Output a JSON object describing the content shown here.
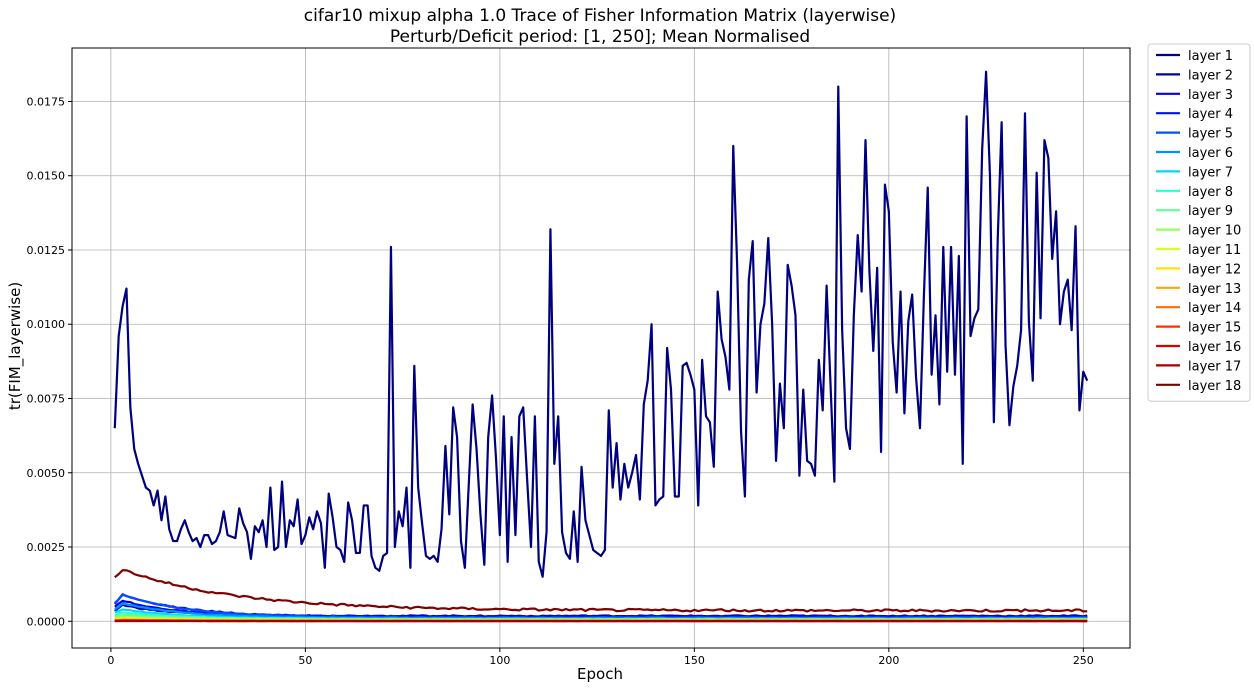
{
  "chart_data": {
    "type": "line",
    "title": "cifar10 mixup alpha 1.0 Trace of Fisher Information Matrix (layerwise)",
    "subtitle": "Perturb/Deficit period: [1, 250]; Mean Normalised",
    "xlabel": "Epoch",
    "ylabel": "tr(FIM_layerwise)",
    "xlim": [
      -10,
      262
    ],
    "ylim": [
      -0.0009,
      0.0193
    ],
    "xticks": [
      0,
      50,
      100,
      150,
      200,
      250
    ],
    "yticks": [
      0.0,
      0.0025,
      0.005,
      0.0075,
      0.01,
      0.0125,
      0.015,
      0.0175
    ],
    "ytick_labels": [
      "0.0000",
      "0.0025",
      "0.0050",
      "0.0075",
      "0.0100",
      "0.0125",
      "0.0150",
      "0.0175"
    ],
    "grid": true,
    "legend_position": "outside-right",
    "series": [
      {
        "name": "layer 1",
        "color": "#00007f",
        "points": [
          [
            1,
            0.0065
          ],
          [
            2,
            0.0096
          ],
          [
            3,
            0.0106
          ],
          [
            4,
            0.0112
          ],
          [
            5,
            0.0072
          ],
          [
            6,
            0.0058
          ],
          [
            7,
            0.0053
          ],
          [
            8,
            0.0049
          ],
          [
            9,
            0.0045
          ],
          [
            10,
            0.0044
          ],
          [
            11,
            0.0039
          ],
          [
            12,
            0.0044
          ],
          [
            13,
            0.0034
          ],
          [
            14,
            0.0042
          ],
          [
            15,
            0.0031
          ],
          [
            16,
            0.0027
          ],
          [
            17,
            0.0027
          ],
          [
            18,
            0.0031
          ],
          [
            19,
            0.0034
          ],
          [
            20,
            0.003
          ],
          [
            21,
            0.0027
          ],
          [
            22,
            0.0028
          ],
          [
            23,
            0.0025
          ],
          [
            24,
            0.0029
          ],
          [
            25,
            0.0029
          ],
          [
            26,
            0.0026
          ],
          [
            27,
            0.0027
          ],
          [
            28,
            0.003
          ],
          [
            29,
            0.0037
          ],
          [
            30,
            0.0029
          ],
          [
            32,
            0.0028
          ],
          [
            33,
            0.0038
          ],
          [
            34,
            0.0033
          ],
          [
            35,
            0.003
          ],
          [
            36,
            0.0021
          ],
          [
            37,
            0.0032
          ],
          [
            38,
            0.003
          ],
          [
            39,
            0.0034
          ],
          [
            40,
            0.0025
          ],
          [
            41,
            0.0045
          ],
          [
            42,
            0.0024
          ],
          [
            43,
            0.0025
          ],
          [
            44,
            0.0047
          ],
          [
            45,
            0.0025
          ],
          [
            46,
            0.0034
          ],
          [
            47,
            0.0032
          ],
          [
            48,
            0.0041
          ],
          [
            49,
            0.0026
          ],
          [
            50,
            0.0029
          ],
          [
            51,
            0.0035
          ],
          [
            52,
            0.0031
          ],
          [
            53,
            0.0037
          ],
          [
            54,
            0.0033
          ],
          [
            55,
            0.0018
          ],
          [
            56,
            0.0043
          ],
          [
            57,
            0.0035
          ],
          [
            58,
            0.0025
          ],
          [
            59,
            0.0024
          ],
          [
            60,
            0.002
          ],
          [
            61,
            0.004
          ],
          [
            62,
            0.0034
          ],
          [
            63,
            0.0023
          ],
          [
            64,
            0.0023
          ],
          [
            65,
            0.0039
          ],
          [
            66,
            0.0039
          ],
          [
            67,
            0.0022
          ],
          [
            68,
            0.0018
          ],
          [
            69,
            0.0017
          ],
          [
            70,
            0.0022
          ],
          [
            71,
            0.0023
          ],
          [
            72,
            0.0126
          ],
          [
            73,
            0.0025
          ],
          [
            74,
            0.0037
          ],
          [
            75,
            0.0032
          ],
          [
            76,
            0.0045
          ],
          [
            77,
            0.0018
          ],
          [
            78,
            0.0086
          ],
          [
            79,
            0.0045
          ],
          [
            80,
            0.0033
          ],
          [
            81,
            0.0022
          ],
          [
            82,
            0.0021
          ],
          [
            83,
            0.0022
          ],
          [
            84,
            0.002
          ],
          [
            85,
            0.0031
          ],
          [
            86,
            0.0059
          ],
          [
            87,
            0.0036
          ],
          [
            88,
            0.0072
          ],
          [
            89,
            0.0062
          ],
          [
            90,
            0.0027
          ],
          [
            91,
            0.0018
          ],
          [
            92,
            0.0046
          ],
          [
            93,
            0.0073
          ],
          [
            94,
            0.0058
          ],
          [
            95,
            0.0036
          ],
          [
            96,
            0.0019
          ],
          [
            97,
            0.0062
          ],
          [
            98,
            0.0076
          ],
          [
            99,
            0.0055
          ],
          [
            100,
            0.0029
          ],
          [
            101,
            0.0069
          ],
          [
            102,
            0.002
          ],
          [
            103,
            0.0062
          ],
          [
            104,
            0.0029
          ],
          [
            105,
            0.0069
          ],
          [
            106,
            0.0072
          ],
          [
            107,
            0.0048
          ],
          [
            108,
            0.0025
          ],
          [
            109,
            0.0069
          ],
          [
            110,
            0.002
          ],
          [
            111,
            0.0015
          ],
          [
            112,
            0.003
          ],
          [
            113,
            0.0132
          ],
          [
            114,
            0.0053
          ],
          [
            115,
            0.0069
          ],
          [
            116,
            0.003
          ],
          [
            117,
            0.0023
          ],
          [
            118,
            0.0021
          ],
          [
            119,
            0.0037
          ],
          [
            120,
            0.002
          ],
          [
            121,
            0.0052
          ],
          [
            122,
            0.0034
          ],
          [
            123,
            0.0029
          ],
          [
            124,
            0.0024
          ],
          [
            125,
            0.0023
          ],
          [
            126,
            0.0022
          ],
          [
            127,
            0.0024
          ],
          [
            128,
            0.0071
          ],
          [
            129,
            0.0045
          ],
          [
            130,
            0.006
          ],
          [
            131,
            0.0041
          ],
          [
            132,
            0.0053
          ],
          [
            133,
            0.0045
          ],
          [
            134,
            0.005
          ],
          [
            135,
            0.0056
          ],
          [
            136,
            0.0041
          ],
          [
            137,
            0.0073
          ],
          [
            138,
            0.0081
          ],
          [
            139,
            0.01
          ],
          [
            140,
            0.0039
          ],
          [
            141,
            0.0041
          ],
          [
            142,
            0.0042
          ],
          [
            143,
            0.0092
          ],
          [
            144,
            0.0078
          ],
          [
            145,
            0.0042
          ],
          [
            146,
            0.0042
          ],
          [
            147,
            0.0086
          ],
          [
            148,
            0.0087
          ],
          [
            149,
            0.0083
          ],
          [
            150,
            0.0078
          ],
          [
            151,
            0.0039
          ],
          [
            152,
            0.0088
          ],
          [
            153,
            0.0069
          ],
          [
            154,
            0.0067
          ],
          [
            155,
            0.0052
          ],
          [
            156,
            0.0111
          ],
          [
            157,
            0.0095
          ],
          [
            158,
            0.0089
          ],
          [
            159,
            0.0078
          ],
          [
            160,
            0.016
          ],
          [
            161,
            0.012
          ],
          [
            162,
            0.0064
          ],
          [
            163,
            0.0042
          ],
          [
            164,
            0.0115
          ],
          [
            165,
            0.0128
          ],
          [
            166,
            0.0077
          ],
          [
            167,
            0.01
          ],
          [
            168,
            0.0107
          ],
          [
            169,
            0.0129
          ],
          [
            170,
            0.01
          ],
          [
            171,
            0.0054
          ],
          [
            172,
            0.008
          ],
          [
            173,
            0.0065
          ],
          [
            174,
            0.012
          ],
          [
            175,
            0.0113
          ],
          [
            176,
            0.0103
          ],
          [
            177,
            0.0049
          ],
          [
            178,
            0.0078
          ],
          [
            179,
            0.0054
          ],
          [
            180,
            0.0053
          ],
          [
            181,
            0.0049
          ],
          [
            182,
            0.0088
          ],
          [
            183,
            0.0071
          ],
          [
            184,
            0.0113
          ],
          [
            185,
            0.008
          ],
          [
            186,
            0.0047
          ],
          [
            187,
            0.018
          ],
          [
            188,
            0.0098
          ],
          [
            189,
            0.0065
          ],
          [
            190,
            0.0058
          ],
          [
            191,
            0.0103
          ],
          [
            192,
            0.013
          ],
          [
            193,
            0.0111
          ],
          [
            194,
            0.0162
          ],
          [
            195,
            0.0118
          ],
          [
            196,
            0.0091
          ],
          [
            197,
            0.0119
          ],
          [
            198,
            0.0057
          ],
          [
            199,
            0.0147
          ],
          [
            200,
            0.0138
          ],
          [
            201,
            0.0094
          ],
          [
            202,
            0.0077
          ],
          [
            203,
            0.0111
          ],
          [
            204,
            0.007
          ],
          [
            205,
            0.0101
          ],
          [
            206,
            0.011
          ],
          [
            207,
            0.0082
          ],
          [
            208,
            0.0065
          ],
          [
            209,
            0.0109
          ],
          [
            210,
            0.0146
          ],
          [
            211,
            0.0083
          ],
          [
            212,
            0.0103
          ],
          [
            213,
            0.0073
          ],
          [
            214,
            0.0126
          ],
          [
            215,
            0.0084
          ],
          [
            216,
            0.0126
          ],
          [
            217,
            0.0083
          ],
          [
            218,
            0.0123
          ],
          [
            219,
            0.0053
          ],
          [
            220,
            0.017
          ],
          [
            221,
            0.0096
          ],
          [
            222,
            0.0102
          ],
          [
            223,
            0.0105
          ],
          [
            224,
            0.0159
          ],
          [
            225,
            0.0185
          ],
          [
            226,
            0.015
          ],
          [
            227,
            0.0067
          ],
          [
            228,
            0.0129
          ],
          [
            229,
            0.0168
          ],
          [
            230,
            0.0093
          ],
          [
            231,
            0.0066
          ],
          [
            232,
            0.0079
          ],
          [
            233,
            0.0086
          ],
          [
            234,
            0.0098
          ],
          [
            235,
            0.0171
          ],
          [
            236,
            0.0101
          ],
          [
            237,
            0.0081
          ],
          [
            238,
            0.0151
          ],
          [
            239,
            0.0102
          ],
          [
            240,
            0.0162
          ],
          [
            241,
            0.0156
          ],
          [
            242,
            0.0122
          ],
          [
            243,
            0.0138
          ],
          [
            244,
            0.01
          ],
          [
            245,
            0.0111
          ],
          [
            246,
            0.0115
          ],
          [
            247,
            0.0098
          ],
          [
            248,
            0.0133
          ],
          [
            249,
            0.0071
          ],
          [
            250,
            0.0084
          ],
          [
            251,
            0.0081
          ]
        ]
      },
      {
        "name": "layer 2",
        "color": "#0000b2",
        "shape": {
          "start": 0.00035,
          "peak": 0.00055,
          "end": 0.00018,
          "decay": 0.08,
          "noise": 2e-05
        }
      },
      {
        "name": "layer 3",
        "color": "#0000f1",
        "shape": {
          "start": 0.0005,
          "peak": 0.0007,
          "end": 0.00016,
          "decay": 0.07,
          "noise": 2e-05
        }
      },
      {
        "name": "layer 4",
        "color": "#0010ff",
        "shape": {
          "start": 0.0006,
          "peak": 0.0009,
          "end": 0.00014,
          "decay": 0.06,
          "noise": 2e-05
        }
      },
      {
        "name": "layer 5",
        "color": "#0050ff",
        "shape": {
          "start": 0.0006,
          "peak": 0.0009,
          "end": 0.00012,
          "decay": 0.06,
          "noise": 2e-05
        }
      },
      {
        "name": "layer 6",
        "color": "#0090ff",
        "shape": {
          "start": 0.0004,
          "peak": 0.0006,
          "end": 0.0001,
          "decay": 0.06,
          "noise": 1e-05
        }
      },
      {
        "name": "layer 7",
        "color": "#00d4ff",
        "shape": {
          "start": 0.0003,
          "peak": 0.0004,
          "end": 8e-05,
          "decay": 0.06,
          "noise": 1e-05
        }
      },
      {
        "name": "layer 8",
        "color": "#29ffce",
        "shape": {
          "start": 0.0002,
          "peak": 0.0003,
          "end": 7e-05,
          "decay": 0.06,
          "noise": 1e-05
        }
      },
      {
        "name": "layer 9",
        "color": "#60ff97",
        "shape": {
          "start": 0.00015,
          "peak": 0.00022,
          "end": 6e-05,
          "decay": 0.06,
          "noise": 1e-05
        }
      },
      {
        "name": "layer 10",
        "color": "#9aff5d",
        "shape": {
          "start": 0.0001,
          "peak": 0.00015,
          "end": 5e-05,
          "decay": 0.06,
          "noise": 5e-06
        }
      },
      {
        "name": "layer 11",
        "color": "#d1ff26",
        "shape": {
          "start": 8e-05,
          "peak": 0.0001,
          "end": 4e-05,
          "decay": 0.06,
          "noise": 5e-06
        }
      },
      {
        "name": "layer 12",
        "color": "#ffe500",
        "shape": {
          "start": 6e-05,
          "peak": 8e-05,
          "end": 3e-05,
          "decay": 0.06,
          "noise": 5e-06
        }
      },
      {
        "name": "layer 13",
        "color": "#ffa700",
        "shape": {
          "start": 4e-05,
          "peak": 5e-05,
          "end": 2e-05,
          "decay": 0.06,
          "noise": 3e-06
        }
      },
      {
        "name": "layer 14",
        "color": "#ff6c00",
        "shape": {
          "start": 3e-05,
          "peak": 4e-05,
          "end": 1.5e-05,
          "decay": 0.06,
          "noise": 3e-06
        }
      },
      {
        "name": "layer 15",
        "color": "#ff2e00",
        "shape": {
          "start": 2e-05,
          "peak": 3e-05,
          "end": 1e-05,
          "decay": 0.06,
          "noise": 2e-06
        }
      },
      {
        "name": "layer 16",
        "color": "#dc0000",
        "shape": {
          "start": 1e-05,
          "peak": 2e-05,
          "end": 8e-06,
          "decay": 0.06,
          "noise": 2e-06
        }
      },
      {
        "name": "layer 17",
        "color": "#a30000",
        "shape": {
          "start": 5e-06,
          "peak": 1e-05,
          "end": 5e-06,
          "decay": 0.06,
          "noise": 1e-06
        }
      },
      {
        "name": "layer 18",
        "color": "#7f0000",
        "shape": {
          "start": 0.0015,
          "peak": 0.00175,
          "end": 0.00036,
          "decay": 0.035,
          "noise": 4e-05
        }
      }
    ]
  }
}
